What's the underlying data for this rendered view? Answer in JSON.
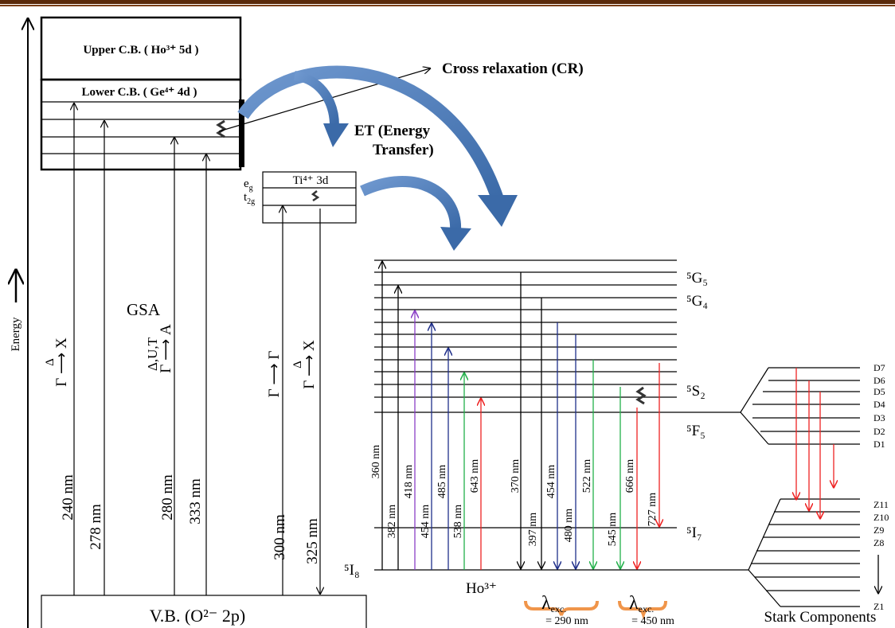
{
  "bands": {
    "upper_cb": "Upper C.B. ( Ho³⁺ 5d )",
    "lower_cb": "Lower C.B. ( Ge⁴⁺ 4d )",
    "vb": "V.B. (O²⁻ 2p)",
    "ti": "Ti⁴⁺ 3d",
    "eg": {
      "main": "e",
      "sub": "g"
    },
    "t2g": {
      "main": "t",
      "sub": "2g"
    }
  },
  "axis": {
    "label": "Energy"
  },
  "annotations": {
    "cr": "Cross relaxation (CR)",
    "et": [
      "ET (Energy",
      "Transfer)"
    ],
    "gsa": "GSA"
  },
  "host_transitions": [
    {
      "label": "240 nm",
      "notation": {
        "base": "Γ ⟶ X",
        "over": "Δ"
      }
    },
    {
      "label": "278 nm"
    },
    {
      "label": "280 nm",
      "notation": {
        "base": "Γ ⟶ A",
        "over": "Δ,U,T"
      }
    },
    {
      "label": "333 nm"
    },
    {
      "label": "300 nm",
      "notation": {
        "base": "Γ ⟶ Γ"
      }
    },
    {
      "label": "325 nm",
      "notation": {
        "base": "Γ ⟶ X",
        "over": "Δ"
      }
    }
  ],
  "ho_levels": {
    "g5": "⁵G₅",
    "g4": "⁵G₄",
    "s2": "⁵S₂",
    "f5": "⁵F₅",
    "i7": "⁵I₇",
    "i8": "⁵I₈",
    "ion": "Ho³⁺"
  },
  "ho_transitions": [
    "360 nm",
    "382 nm",
    "418 nm",
    "454 nm",
    "485 nm",
    "538 nm",
    "643 nm",
    "370 nm",
    "397 nm",
    "454 nm",
    "480 nm",
    "522 nm",
    "545 nm",
    "666 nm",
    "727 nm"
  ],
  "excitation": [
    {
      "symbol": "λ",
      "sub": "exc.",
      "value": "= 290 nm"
    },
    {
      "symbol": "λ",
      "sub": "exc.",
      "value": "= 450 nm"
    }
  ],
  "stark": {
    "d": [
      "D7",
      "D6",
      "D5",
      "D4",
      "D3",
      "D2",
      "D1"
    ],
    "z": [
      "Z11",
      "Z10",
      "Z9",
      "Z8",
      "Z1"
    ],
    "title": "Stark Components"
  }
}
